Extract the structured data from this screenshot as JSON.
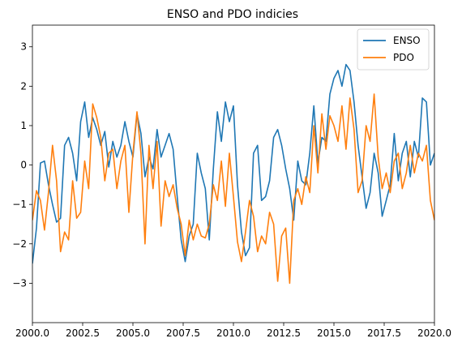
{
  "chart_data": {
    "type": "line",
    "title": "ENSO and PDO indicies",
    "xlabel": "",
    "ylabel": "",
    "xlim": [
      2000.0,
      2020.0
    ],
    "ylim": [
      -4.0,
      3.55
    ],
    "xticks": [
      2000.0,
      2002.5,
      2005.0,
      2007.5,
      2010.0,
      2012.5,
      2015.0,
      2017.5,
      2020.0
    ],
    "xtick_labels": [
      "2000.0",
      "2002.5",
      "2005.0",
      "2007.5",
      "2010.0",
      "2012.5",
      "2015.0",
      "2017.5",
      "2020.0"
    ],
    "yticks": [
      -3,
      -2,
      -1,
      0,
      1,
      2,
      3
    ],
    "ytick_labels": [
      "−3",
      "−2",
      "−1",
      "0",
      "1",
      "2",
      "3"
    ],
    "grid": false,
    "legend": "top-right",
    "series": [
      {
        "name": "ENSO",
        "color": "#1f77b4",
        "x": [
          2000.0,
          2000.2,
          2000.4,
          2000.6,
          2000.8,
          2001.0,
          2001.2,
          2001.4,
          2001.6,
          2001.8,
          2002.0,
          2002.2,
          2002.4,
          2002.6,
          2002.8,
          2003.0,
          2003.2,
          2003.4,
          2003.6,
          2003.8,
          2004.0,
          2004.2,
          2004.4,
          2004.6,
          2004.8,
          2005.0,
          2005.2,
          2005.4,
          2005.6,
          2005.8,
          2006.0,
          2006.2,
          2006.4,
          2006.6,
          2006.8,
          2007.0,
          2007.2,
          2007.4,
          2007.6,
          2007.8,
          2008.0,
          2008.2,
          2008.4,
          2008.6,
          2008.8,
          2009.0,
          2009.2,
          2009.4,
          2009.6,
          2009.8,
          2010.0,
          2010.2,
          2010.4,
          2010.6,
          2010.8,
          2011.0,
          2011.2,
          2011.4,
          2011.6,
          2011.8,
          2012.0,
          2012.2,
          2012.4,
          2012.6,
          2012.8,
          2013.0,
          2013.2,
          2013.4,
          2013.6,
          2013.8,
          2014.0,
          2014.2,
          2014.4,
          2014.6,
          2014.8,
          2015.0,
          2015.2,
          2015.4,
          2015.6,
          2015.8,
          2016.0,
          2016.2,
          2016.4,
          2016.6,
          2016.8,
          2017.0,
          2017.2,
          2017.4,
          2017.6,
          2017.8,
          2018.0,
          2018.2,
          2018.4,
          2018.6,
          2018.8,
          2019.0,
          2019.2,
          2019.4,
          2019.6,
          2019.8,
          2020.0
        ],
        "y": [
          -2.5,
          -1.6,
          0.05,
          0.1,
          -0.5,
          -1.0,
          -1.45,
          -1.35,
          0.5,
          0.7,
          0.3,
          -0.4,
          1.1,
          1.6,
          0.7,
          1.2,
          0.9,
          0.5,
          0.85,
          -0.05,
          0.6,
          0.2,
          0.5,
          1.1,
          0.6,
          0.2,
          1.3,
          0.8,
          -0.3,
          0.2,
          -0.1,
          0.9,
          0.2,
          0.5,
          0.8,
          0.4,
          -0.8,
          -1.9,
          -2.45,
          -1.8,
          -1.5,
          0.3,
          -0.2,
          -0.6,
          -1.9,
          -0.1,
          1.35,
          0.6,
          1.6,
          1.1,
          1.5,
          -0.5,
          -1.7,
          -2.3,
          -2.1,
          0.3,
          0.5,
          -0.9,
          -0.8,
          -0.4,
          0.7,
          0.9,
          0.5,
          -0.1,
          -0.6,
          -1.4,
          0.1,
          -0.4,
          -0.5,
          0.3,
          1.5,
          0.05,
          0.7,
          0.6,
          1.8,
          2.2,
          2.4,
          2.0,
          2.55,
          2.4,
          1.6,
          0.5,
          -0.3,
          -1.1,
          -0.7,
          0.3,
          -0.2,
          -1.3,
          -0.9,
          -0.5,
          0.8,
          -0.4,
          0.3,
          0.6,
          -0.3,
          0.6,
          0.2,
          1.7,
          1.6,
          0.0,
          0.3
        ]
      },
      {
        "name": "PDO",
        "color": "#ff7f0e",
        "x": [
          2000.0,
          2000.2,
          2000.4,
          2000.6,
          2000.8,
          2001.0,
          2001.2,
          2001.4,
          2001.6,
          2001.8,
          2002.0,
          2002.2,
          2002.4,
          2002.6,
          2002.8,
          2003.0,
          2003.2,
          2003.4,
          2003.6,
          2003.8,
          2004.0,
          2004.2,
          2004.4,
          2004.6,
          2004.8,
          2005.0,
          2005.2,
          2005.4,
          2005.6,
          2005.8,
          2006.0,
          2006.2,
          2006.4,
          2006.6,
          2006.8,
          2007.0,
          2007.2,
          2007.4,
          2007.6,
          2007.8,
          2008.0,
          2008.2,
          2008.4,
          2008.6,
          2008.8,
          2009.0,
          2009.2,
          2009.4,
          2009.6,
          2009.8,
          2010.0,
          2010.2,
          2010.4,
          2010.6,
          2010.8,
          2011.0,
          2011.2,
          2011.4,
          2011.6,
          2011.8,
          2012.0,
          2012.2,
          2012.4,
          2012.6,
          2012.8,
          2013.0,
          2013.2,
          2013.4,
          2013.6,
          2013.8,
          2014.0,
          2014.2,
          2014.4,
          2014.6,
          2014.8,
          2015.0,
          2015.2,
          2015.4,
          2015.6,
          2015.8,
          2016.0,
          2016.2,
          2016.4,
          2016.6,
          2016.8,
          2017.0,
          2017.2,
          2017.4,
          2017.6,
          2017.8,
          2018.0,
          2018.2,
          2018.4,
          2018.6,
          2018.8,
          2019.0,
          2019.2,
          2019.4,
          2019.6,
          2019.8,
          2020.0
        ],
        "y": [
          -1.4,
          -0.65,
          -0.9,
          -1.65,
          -0.7,
          0.5,
          -0.4,
          -2.2,
          -1.7,
          -1.9,
          -0.4,
          -1.35,
          -1.2,
          0.1,
          -0.6,
          1.55,
          1.2,
          0.7,
          -0.4,
          0.3,
          0.4,
          -0.6,
          0.1,
          0.5,
          -1.2,
          0.3,
          1.35,
          0.3,
          -2.0,
          0.5,
          -0.6,
          0.6,
          -1.55,
          -0.4,
          -0.8,
          -0.5,
          -1.1,
          -1.5,
          -2.3,
          -1.4,
          -1.9,
          -1.5,
          -1.8,
          -1.85,
          -1.5,
          -0.5,
          -0.9,
          0.1,
          -1.05,
          0.3,
          -0.8,
          -1.95,
          -2.45,
          -1.7,
          -0.9,
          -1.3,
          -2.2,
          -1.8,
          -2.0,
          -1.2,
          -1.5,
          -2.95,
          -1.8,
          -1.6,
          -3.0,
          -0.9,
          -0.6,
          -1.0,
          -0.3,
          -0.7,
          1.0,
          -0.2,
          1.3,
          0.4,
          1.25,
          1.0,
          0.6,
          1.5,
          0.4,
          1.7,
          0.9,
          -0.7,
          -0.4,
          1.0,
          0.6,
          1.8,
          0.2,
          -0.6,
          -0.2,
          -0.7,
          0.1,
          0.3,
          -0.6,
          -0.2,
          0.5,
          -0.2,
          0.3,
          0.1,
          0.5,
          -0.9,
          -1.4
        ]
      }
    ]
  }
}
